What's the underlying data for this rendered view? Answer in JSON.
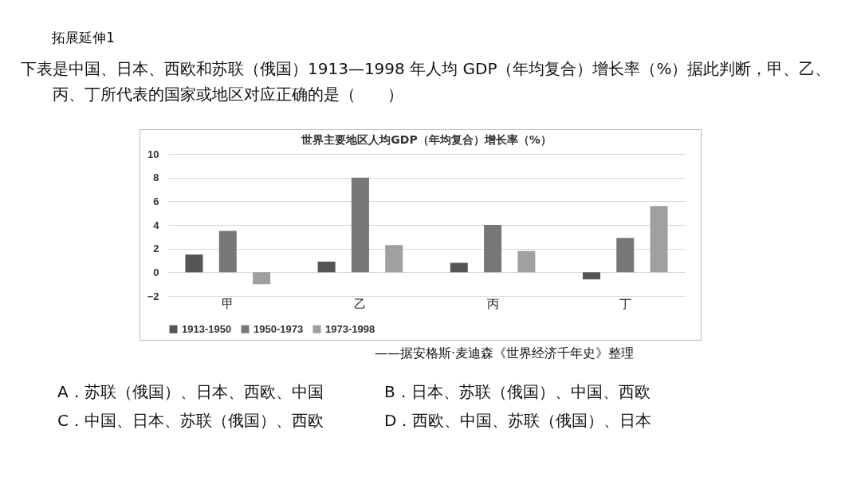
{
  "chart_data": {
    "type": "bar",
    "title": "世界主要地区人均GDP（年均复合）增长率（%）",
    "categories": [
      "甲",
      "乙",
      "丙",
      "丁"
    ],
    "series": [
      {
        "name": "1913-1950",
        "color": "#555555",
        "values": [
          1.5,
          0.9,
          0.8,
          -0.6
        ]
      },
      {
        "name": "1950-1973",
        "color": "#777777",
        "values": [
          3.5,
          8.0,
          4.0,
          2.9
        ]
      },
      {
        "name": "1973-1998",
        "color": "#a0a0a0",
        "values": [
          -1.0,
          2.3,
          1.8,
          5.6
        ]
      }
    ],
    "ylim": [
      -2,
      10
    ],
    "yticks": [
      -2,
      0,
      2,
      4,
      6,
      8,
      10
    ],
    "grid": "y",
    "legend": "bottom",
    "annotations": [
      "拓展延伸1",
      "下表是中国、日本、西欧和苏联（俄国）1913—1998 年人均 GDP（年均复合）增长率（%）据此判断，甲、乙、丙、丁所代表的国家或地区对应正确的是（　　）",
      "——据安格斯·麦迪森《世界经济千年史》整理",
      "A．苏联（俄国）、日本、西欧、中国",
      "B．日本、苏联（俄国）、中国、西欧",
      "C．中国、日本、苏联（俄国）、西欧",
      "D．西欧、中国、苏联（俄国）、日本"
    ]
  }
}
